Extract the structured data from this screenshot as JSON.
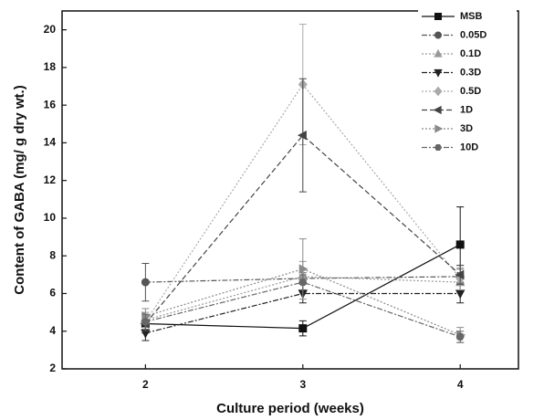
{
  "chart_data": {
    "type": "line",
    "x_label": "Culture period (weeks)",
    "y_label": "Content of GABA (mg/ g dry wt.)",
    "x": [
      2,
      3,
      4
    ],
    "xlim": [
      1.47,
      4.37
    ],
    "xticks": [
      2,
      3,
      4
    ],
    "ylim": [
      2,
      21
    ],
    "yticks": [
      2,
      4,
      6,
      8,
      10,
      12,
      14,
      16,
      18,
      20
    ],
    "legend": "top-right",
    "series": [
      {
        "name": "MSB",
        "color": "#111111",
        "marker": "square",
        "dash": "solid",
        "values": [
          4.4,
          4.15,
          8.6
        ],
        "errors": [
          0.5,
          0.4,
          2.0
        ]
      },
      {
        "name": "0.05D",
        "color": "#555555",
        "marker": "circle",
        "dash": "dashdot",
        "values": [
          6.6,
          6.8,
          6.9
        ],
        "errors": [
          1.0,
          0.3,
          0.4
        ]
      },
      {
        "name": "0.1D",
        "color": "#9a9a9a",
        "marker": "triangle-up",
        "dash": "dot",
        "values": [
          4.6,
          6.9,
          6.6
        ],
        "errors": [
          0.4,
          0.8,
          0.5
        ]
      },
      {
        "name": "0.3D",
        "color": "#222222",
        "marker": "triangle-down",
        "dash": "dashdot",
        "values": [
          3.9,
          6.0,
          6.0
        ],
        "errors": [
          0.4,
          0.5,
          0.5
        ]
      },
      {
        "name": "0.5D",
        "color": "#aaaaaa",
        "marker": "diamond",
        "dash": "dot",
        "values": [
          4.5,
          17.1,
          6.8
        ],
        "errors": [
          0.4,
          3.2,
          0.6
        ]
      },
      {
        "name": "1D",
        "color": "#444444",
        "marker": "triangle-left",
        "dash": "dash",
        "values": [
          4.4,
          14.4,
          7.0
        ],
        "errors": [
          0.4,
          3.0,
          0.5
        ]
      },
      {
        "name": "3D",
        "color": "#8a8a8a",
        "marker": "triangle-right",
        "dash": "dot",
        "values": [
          4.8,
          7.3,
          3.8
        ],
        "errors": [
          0.4,
          1.6,
          0.4
        ]
      },
      {
        "name": "10D",
        "color": "#666666",
        "marker": "hexagon",
        "dash": "dashdot",
        "values": [
          4.5,
          6.6,
          3.7
        ],
        "errors": [
          0.4,
          0.4,
          0.3
        ]
      }
    ]
  }
}
